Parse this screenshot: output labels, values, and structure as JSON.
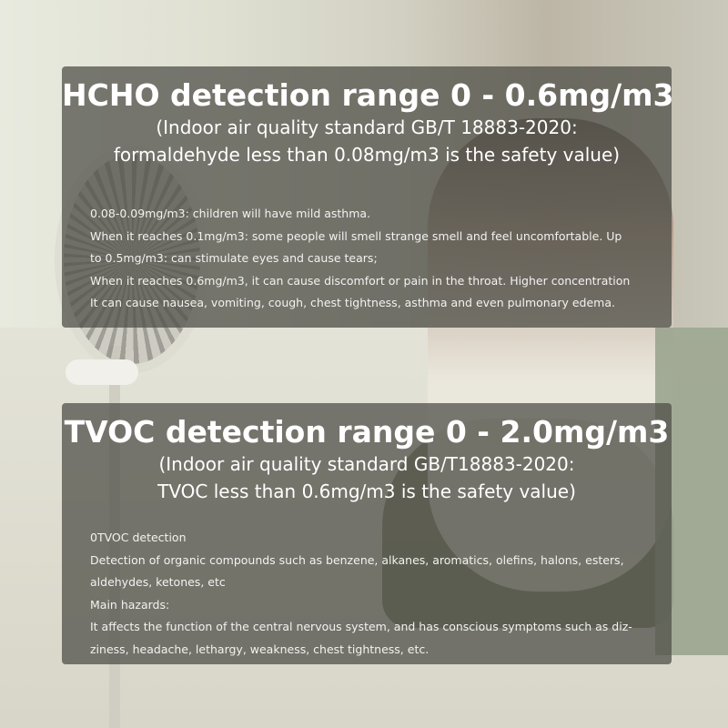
{
  "hcho": {
    "title": "HCHO detection range 0 - 0.6mg/m3",
    "subtitle": [
      "(Indoor air quality standard GB/T 18883-2020:",
      "formaldehyde less than 0.08mg/m3 is the safety value)"
    ],
    "body": [
      "0.08-0.09mg/m3: children will have mild asthma.",
      "When it reaches 0.1mg/m3: some people will smell strange smell and feel uncomfortable. Up",
      "to 0.5mg/m3: can stimulate eyes and cause tears;",
      "When it reaches 0.6mg/m3, it can cause discomfort or pain in the throat. Higher concentration",
      "It can cause nausea, vomiting, cough, chest tightness, asthma and even pulmonary edema."
    ]
  },
  "tvoc": {
    "title": "TVOC detection range 0 - 2.0mg/m3",
    "subtitle": [
      "(Indoor air quality standard GB/T18883-2020:",
      "TVOC less than 0.6mg/m3 is the safety value)"
    ],
    "body": [
      "0TVOC detection",
      "Detection of organic compounds such as benzene, alkanes, aromatics, olefins, halons, esters,",
      "aldehydes, ketones, etc",
      "Main hazards:",
      "It affects the function of the central nervous system, and has conscious symptoms such as diz-",
      "ziness, headache, lethargy, weakness, chest tightness, etc."
    ]
  }
}
